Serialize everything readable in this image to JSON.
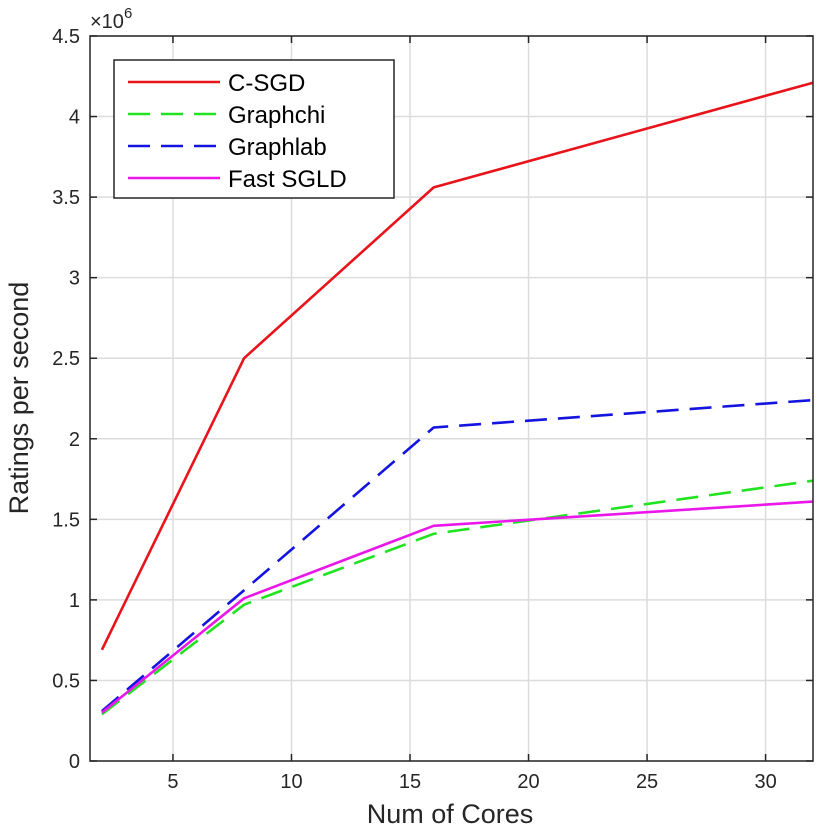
{
  "chart_data": {
    "type": "line",
    "xlabel": "Num of Cores",
    "ylabel": "Ratings per second",
    "exponent_label": "×10",
    "exponent_power": "6",
    "xlim": [
      1.5,
      32
    ],
    "ylim": [
      0,
      4.5
    ],
    "grid": true,
    "legend_position": "top-left",
    "xticks": [
      5,
      10,
      15,
      20,
      25,
      30
    ],
    "xtick_labels": [
      "5",
      "10",
      "15",
      "20",
      "25",
      "30"
    ],
    "yticks": [
      0,
      0.5,
      1,
      1.5,
      2,
      2.5,
      3,
      3.5,
      4,
      4.5
    ],
    "ytick_labels": [
      "0",
      "0.5",
      "1",
      "1.5",
      "2",
      "2.5",
      "3",
      "3.5",
      "4",
      "4.5"
    ],
    "x": [
      2,
      8,
      16,
      32
    ],
    "series": [
      {
        "name": "C-SGD",
        "color": "#e8131b",
        "dash": "solid",
        "values": [
          0.69,
          2.5,
          3.56,
          4.21
        ]
      },
      {
        "name": "Graphchi",
        "color": "#22e322",
        "dash": "dashed",
        "values": [
          0.29,
          0.97,
          1.41,
          1.74
        ]
      },
      {
        "name": "Graphlab",
        "color": "#1414e0",
        "dash": "dashed",
        "values": [
          0.31,
          1.06,
          2.07,
          2.24
        ]
      },
      {
        "name": "Fast SGLD",
        "color": "#ea17ea",
        "dash": "solid",
        "values": [
          0.3,
          1.01,
          1.46,
          1.61
        ]
      }
    ]
  }
}
